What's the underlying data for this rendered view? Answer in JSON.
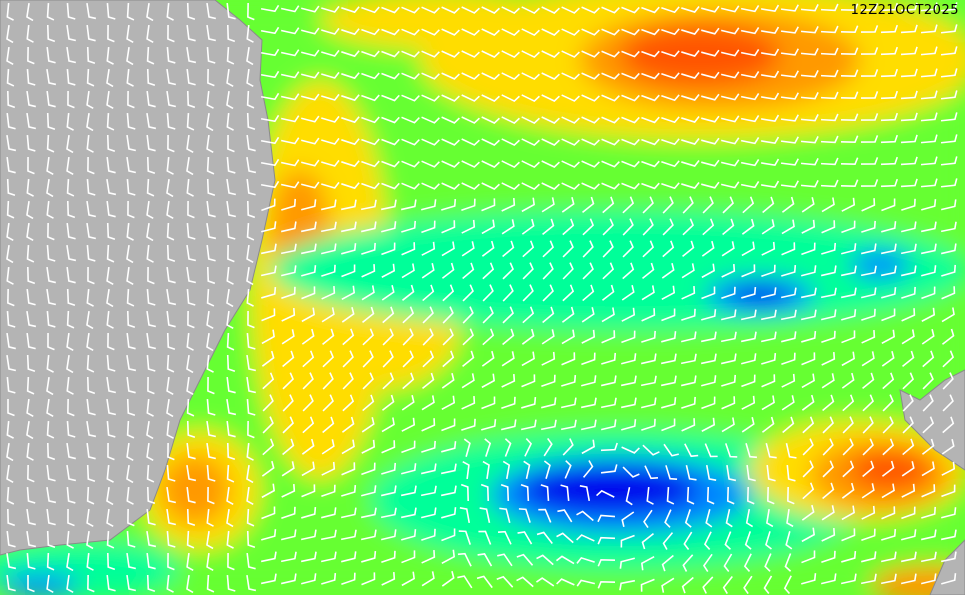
{
  "timestamp": "12Z21OCT2025",
  "colors": {
    "land": "#b4b4b4",
    "green": "#66ff33",
    "cyan_green": "#00ff99",
    "light_green": "#99ff33",
    "yellow": "#ffdd00",
    "orange": "#ff9900",
    "red_orange": "#ff5500",
    "blue_mid": "#0088ff",
    "blue_deep": "#0000ee",
    "barb": "#ffffff"
  }
}
